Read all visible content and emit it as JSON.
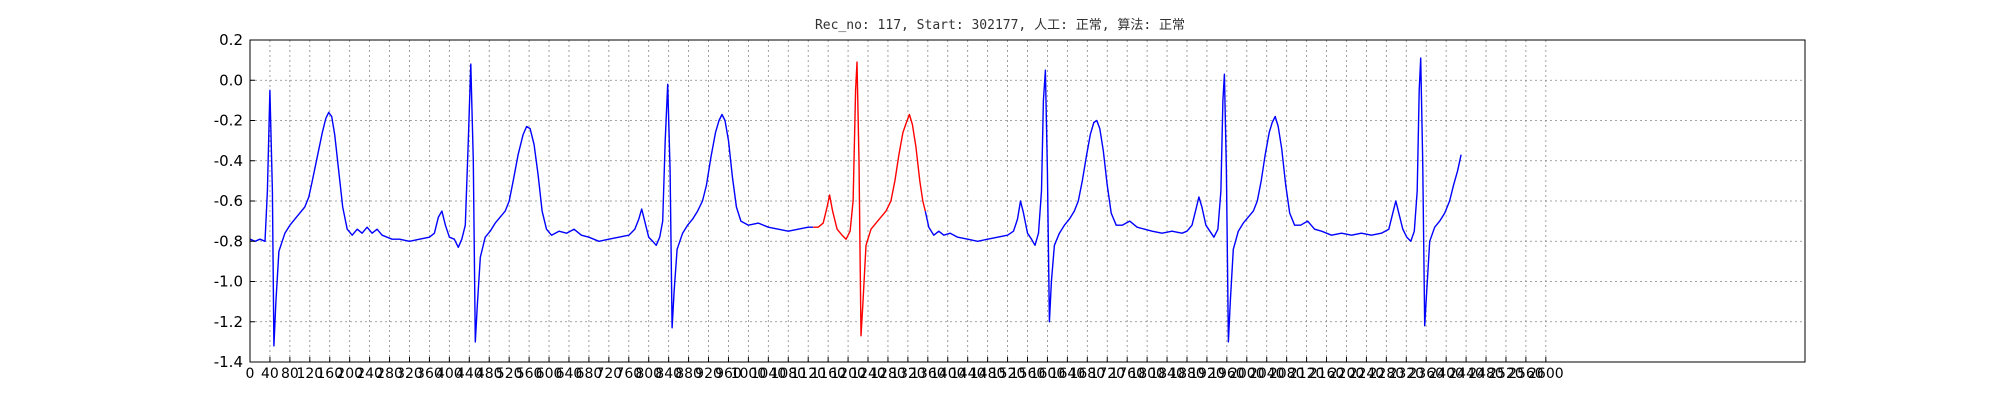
{
  "chart_data": {
    "type": "line",
    "title": "Rec_no: 117, Start: 302177, 人工: 正常, 算法: 正常",
    "xlabel": "",
    "ylabel": "",
    "xlim": [
      0,
      3120
    ],
    "ylim": [
      -1.4,
      0.2
    ],
    "grid": true,
    "xtick_labels": [
      "0",
      "40",
      "80",
      "120",
      "160",
      "200",
      "240",
      "280",
      "320",
      "360",
      "400",
      "440",
      "480",
      "520",
      "560",
      "600",
      "640",
      "680",
      "720",
      "760",
      "800",
      "840",
      "880",
      "920",
      "960",
      "1000",
      "1040",
      "1080",
      "1120",
      "1160",
      "1200",
      "1240",
      "1280",
      "1320",
      "1360",
      "1400",
      "1440",
      "1480",
      "1520",
      "1560",
      "1600",
      "1640",
      "1680",
      "1720",
      "1760",
      "1800",
      "1840",
      "1880",
      "1920",
      "1960",
      "2000",
      "2040",
      "2080",
      "2120",
      "2160",
      "2200",
      "2240",
      "2280",
      "2320",
      "2360",
      "2400",
      "2440",
      "2480",
      "2520",
      "2560",
      "2600"
    ],
    "ytick_labels": [
      "-1.4",
      "-1.2",
      "-1.0",
      "-0.8",
      "-0.6",
      "-0.4",
      "-0.2",
      "0.0",
      "0.2"
    ],
    "series": [
      {
        "color": "#0000ff",
        "points": [
          [
            0,
            -0.79
          ],
          [
            10,
            -0.8
          ],
          [
            20,
            -0.79
          ],
          [
            30,
            -0.8
          ],
          [
            35,
            -0.55
          ],
          [
            40,
            -0.05
          ],
          [
            45,
            -0.55
          ],
          [
            48,
            -1.32
          ],
          [
            52,
            -1.1
          ],
          [
            58,
            -0.85
          ],
          [
            70,
            -0.76
          ],
          [
            80,
            -0.72
          ],
          [
            90,
            -0.69
          ],
          [
            100,
            -0.66
          ],
          [
            110,
            -0.63
          ],
          [
            118,
            -0.58
          ],
          [
            125,
            -0.5
          ],
          [
            135,
            -0.38
          ],
          [
            145,
            -0.26
          ],
          [
            152,
            -0.19
          ],
          [
            158,
            -0.16
          ],
          [
            164,
            -0.18
          ],
          [
            170,
            -0.27
          ],
          [
            178,
            -0.45
          ],
          [
            186,
            -0.63
          ],
          [
            195,
            -0.74
          ],
          [
            205,
            -0.77
          ],
          [
            215,
            -0.74
          ],
          [
            225,
            -0.76
          ],
          [
            235,
            -0.73
          ],
          [
            245,
            -0.76
          ],
          [
            255,
            -0.74
          ],
          [
            265,
            -0.77
          ],
          [
            275,
            -0.78
          ],
          [
            285,
            -0.79
          ],
          [
            300,
            -0.79
          ],
          [
            320,
            -0.8
          ],
          [
            340,
            -0.79
          ],
          [
            360,
            -0.78
          ],
          [
            370,
            -0.76
          ],
          [
            378,
            -0.68
          ],
          [
            385,
            -0.65
          ],
          [
            392,
            -0.72
          ],
          [
            400,
            -0.78
          ],
          [
            410,
            -0.79
          ],
          [
            418,
            -0.83
          ],
          [
            425,
            -0.79
          ],
          [
            432,
            -0.72
          ],
          [
            438,
            -0.3
          ],
          [
            443,
            0.08
          ],
          [
            448,
            -0.4
          ],
          [
            452,
            -1.3
          ],
          [
            456,
            -1.12
          ],
          [
            462,
            -0.88
          ],
          [
            472,
            -0.78
          ],
          [
            482,
            -0.75
          ],
          [
            492,
            -0.71
          ],
          [
            502,
            -0.68
          ],
          [
            512,
            -0.65
          ],
          [
            520,
            -0.6
          ],
          [
            528,
            -0.5
          ],
          [
            538,
            -0.37
          ],
          [
            548,
            -0.27
          ],
          [
            555,
            -0.23
          ],
          [
            562,
            -0.24
          ],
          [
            570,
            -0.32
          ],
          [
            578,
            -0.47
          ],
          [
            586,
            -0.65
          ],
          [
            595,
            -0.74
          ],
          [
            605,
            -0.77
          ],
          [
            620,
            -0.75
          ],
          [
            635,
            -0.76
          ],
          [
            650,
            -0.74
          ],
          [
            665,
            -0.77
          ],
          [
            680,
            -0.78
          ],
          [
            700,
            -0.8
          ],
          [
            720,
            -0.79
          ],
          [
            740,
            -0.78
          ],
          [
            760,
            -0.77
          ],
          [
            772,
            -0.74
          ],
          [
            780,
            -0.69
          ],
          [
            786,
            -0.64
          ],
          [
            792,
            -0.7
          ],
          [
            800,
            -0.78
          ],
          [
            808,
            -0.8
          ],
          [
            815,
            -0.82
          ],
          [
            822,
            -0.78
          ],
          [
            828,
            -0.7
          ],
          [
            833,
            -0.3
          ],
          [
            838,
            -0.02
          ],
          [
            843,
            -0.45
          ],
          [
            847,
            -1.23
          ],
          [
            851,
            -1.05
          ],
          [
            857,
            -0.84
          ],
          [
            868,
            -0.76
          ],
          [
            878,
            -0.72
          ],
          [
            888,
            -0.69
          ],
          [
            898,
            -0.65
          ],
          [
            908,
            -0.6
          ],
          [
            916,
            -0.52
          ],
          [
            925,
            -0.38
          ],
          [
            934,
            -0.26
          ],
          [
            941,
            -0.2
          ],
          [
            947,
            -0.17
          ],
          [
            953,
            -0.2
          ],
          [
            960,
            -0.3
          ],
          [
            968,
            -0.48
          ],
          [
            976,
            -0.63
          ],
          [
            985,
            -0.7
          ],
          [
            1000,
            -0.72
          ],
          [
            1020,
            -0.71
          ],
          [
            1040,
            -0.73
          ],
          [
            1060,
            -0.74
          ],
          [
            1080,
            -0.75
          ],
          [
            1100,
            -0.74
          ],
          [
            1120,
            -0.73
          ],
          [
            1130,
            -0.73
          ]
        ]
      },
      {
        "color": "#ff0000",
        "points": [
          [
            1130,
            -0.73
          ],
          [
            1140,
            -0.73
          ],
          [
            1150,
            -0.71
          ],
          [
            1158,
            -0.63
          ],
          [
            1163,
            -0.57
          ],
          [
            1169,
            -0.65
          ],
          [
            1178,
            -0.74
          ],
          [
            1188,
            -0.77
          ],
          [
            1196,
            -0.79
          ],
          [
            1204,
            -0.75
          ],
          [
            1210,
            -0.6
          ],
          [
            1215,
            -0.05
          ],
          [
            1218,
            0.09
          ],
          [
            1222,
            -0.4
          ],
          [
            1226,
            -1.27
          ],
          [
            1230,
            -1.1
          ],
          [
            1236,
            -0.82
          ],
          [
            1246,
            -0.74
          ],
          [
            1256,
            -0.71
          ],
          [
            1266,
            -0.68
          ],
          [
            1276,
            -0.65
          ],
          [
            1286,
            -0.6
          ],
          [
            1294,
            -0.5
          ],
          [
            1302,
            -0.37
          ],
          [
            1310,
            -0.26
          ],
          [
            1317,
            -0.21
          ],
          [
            1323,
            -0.17
          ],
          [
            1329,
            -0.22
          ],
          [
            1336,
            -0.33
          ],
          [
            1344,
            -0.5
          ],
          [
            1350,
            -0.6
          ],
          [
            1355,
            -0.65
          ]
        ]
      },
      {
        "color": "#0000ff",
        "points": [
          [
            1355,
            -0.65
          ],
          [
            1362,
            -0.73
          ],
          [
            1372,
            -0.77
          ],
          [
            1382,
            -0.75
          ],
          [
            1392,
            -0.77
          ],
          [
            1405,
            -0.76
          ],
          [
            1420,
            -0.78
          ],
          [
            1440,
            -0.79
          ],
          [
            1460,
            -0.8
          ],
          [
            1480,
            -0.79
          ],
          [
            1500,
            -0.78
          ],
          [
            1520,
            -0.77
          ],
          [
            1532,
            -0.75
          ],
          [
            1540,
            -0.69
          ],
          [
            1546,
            -0.6
          ],
          [
            1552,
            -0.66
          ],
          [
            1560,
            -0.76
          ],
          [
            1568,
            -0.79
          ],
          [
            1575,
            -0.82
          ],
          [
            1582,
            -0.76
          ],
          [
            1588,
            -0.55
          ],
          [
            1592,
            -0.1
          ],
          [
            1596,
            0.05
          ],
          [
            1600,
            -0.45
          ],
          [
            1604,
            -1.2
          ],
          [
            1608,
            -1.0
          ],
          [
            1614,
            -0.82
          ],
          [
            1624,
            -0.76
          ],
          [
            1634,
            -0.72
          ],
          [
            1644,
            -0.69
          ],
          [
            1654,
            -0.65
          ],
          [
            1662,
            -0.6
          ],
          [
            1670,
            -0.5
          ],
          [
            1678,
            -0.38
          ],
          [
            1686,
            -0.27
          ],
          [
            1693,
            -0.21
          ],
          [
            1699,
            -0.2
          ],
          [
            1705,
            -0.24
          ],
          [
            1712,
            -0.35
          ],
          [
            1720,
            -0.52
          ],
          [
            1728,
            -0.66
          ],
          [
            1738,
            -0.72
          ],
          [
            1750,
            -0.72
          ],
          [
            1765,
            -0.7
          ],
          [
            1780,
            -0.73
          ],
          [
            1795,
            -0.74
          ],
          [
            1810,
            -0.75
          ],
          [
            1830,
            -0.76
          ],
          [
            1850,
            -0.75
          ],
          [
            1870,
            -0.76
          ],
          [
            1880,
            -0.75
          ],
          [
            1890,
            -0.72
          ],
          [
            1898,
            -0.64
          ],
          [
            1904,
            -0.58
          ],
          [
            1910,
            -0.63
          ],
          [
            1918,
            -0.72
          ],
          [
            1926,
            -0.75
          ],
          [
            1934,
            -0.78
          ],
          [
            1942,
            -0.74
          ],
          [
            1948,
            -0.55
          ],
          [
            1952,
            -0.1
          ],
          [
            1955,
            0.03
          ],
          [
            1959,
            -0.45
          ],
          [
            1963,
            -1.3
          ],
          [
            1967,
            -1.1
          ],
          [
            1973,
            -0.84
          ],
          [
            1983,
            -0.75
          ],
          [
            1993,
            -0.71
          ],
          [
            2003,
            -0.68
          ],
          [
            2013,
            -0.65
          ],
          [
            2021,
            -0.6
          ],
          [
            2029,
            -0.5
          ],
          [
            2037,
            -0.37
          ],
          [
            2045,
            -0.26
          ],
          [
            2051,
            -0.21
          ],
          [
            2057,
            -0.18
          ],
          [
            2063,
            -0.23
          ],
          [
            2070,
            -0.34
          ],
          [
            2078,
            -0.52
          ],
          [
            2086,
            -0.66
          ],
          [
            2096,
            -0.72
          ],
          [
            2108,
            -0.72
          ],
          [
            2122,
            -0.7
          ],
          [
            2136,
            -0.74
          ],
          [
            2150,
            -0.75
          ],
          [
            2170,
            -0.77
          ],
          [
            2190,
            -0.76
          ],
          [
            2210,
            -0.77
          ],
          [
            2230,
            -0.76
          ],
          [
            2250,
            -0.77
          ],
          [
            2270,
            -0.76
          ],
          [
            2285,
            -0.74
          ],
          [
            2293,
            -0.66
          ],
          [
            2299,
            -0.6
          ],
          [
            2305,
            -0.66
          ],
          [
            2313,
            -0.74
          ],
          [
            2321,
            -0.78
          ],
          [
            2329,
            -0.8
          ],
          [
            2336,
            -0.75
          ],
          [
            2342,
            -0.55
          ],
          [
            2346,
            -0.05
          ],
          [
            2349,
            0.11
          ],
          [
            2353,
            -0.4
          ],
          [
            2357,
            -1.22
          ],
          [
            2361,
            -1.05
          ],
          [
            2367,
            -0.8
          ],
          [
            2377,
            -0.73
          ],
          [
            2387,
            -0.7
          ],
          [
            2397,
            -0.66
          ],
          [
            2407,
            -0.6
          ],
          [
            2415,
            -0.52
          ],
          [
            2423,
            -0.45
          ],
          [
            2430,
            -0.37
          ]
        ]
      }
    ]
  }
}
